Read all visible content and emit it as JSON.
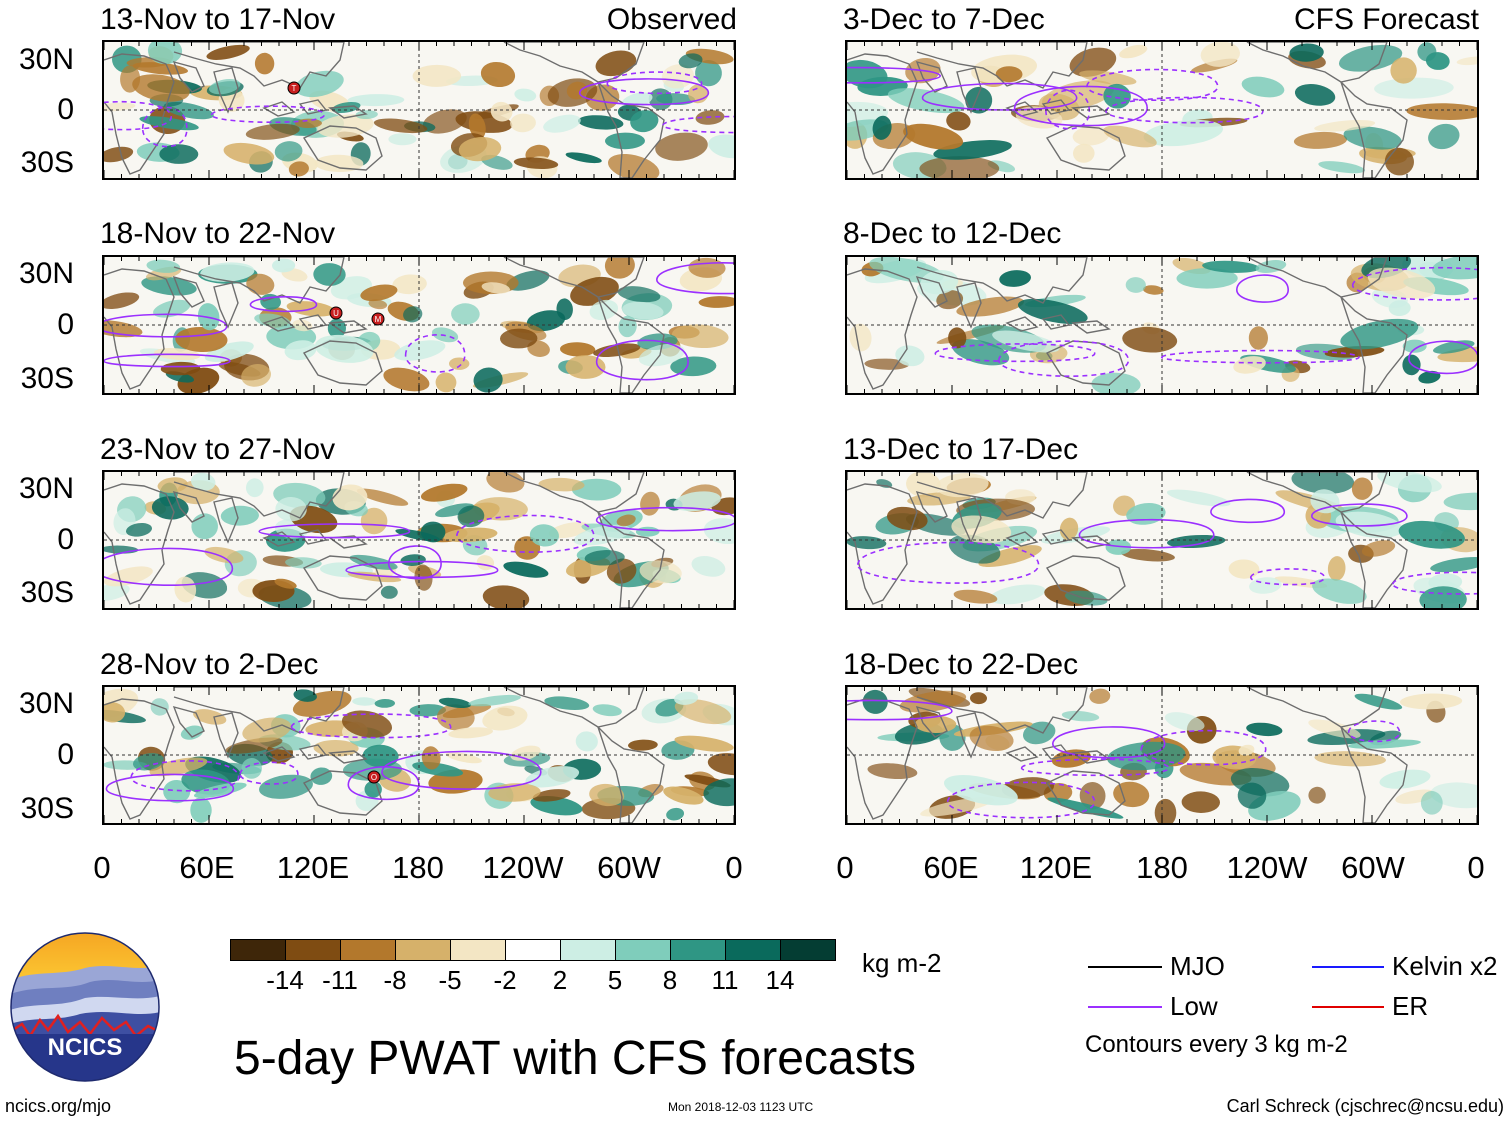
{
  "main_title": "5-day PWAT with CFS forecasts",
  "observed_label": "Observed",
  "forecast_label": "CFS Forecast",
  "panels": {
    "observed": [
      {
        "title": "13-Nov to 17-Nov",
        "storms": [
          "T"
        ]
      },
      {
        "title": "18-Nov to 22-Nov",
        "storms": [
          "U",
          "M"
        ]
      },
      {
        "title": "23-Nov to 27-Nov",
        "storms": []
      },
      {
        "title": "28-Nov to 2-Dec",
        "storms": [
          "O"
        ]
      }
    ],
    "forecast": [
      {
        "title": "3-Dec to 7-Dec"
      },
      {
        "title": "8-Dec to 12-Dec"
      },
      {
        "title": "13-Dec to 17-Dec"
      },
      {
        "title": "18-Dec to 22-Dec"
      }
    ]
  },
  "lat_labels": [
    "30N",
    "0",
    "30S"
  ],
  "lon_labels": [
    "0",
    "60E",
    "120E",
    "180",
    "120W",
    "60W",
    "0"
  ],
  "colorbar": {
    "units": "kg m-2",
    "labels": [
      "-14",
      "-11",
      "-8",
      "-5",
      "-2",
      "2",
      "5",
      "8",
      "11",
      "14"
    ],
    "colors": [
      "#3e2609",
      "#7f4c12",
      "#b3782c",
      "#d6b16a",
      "#f3e6c4",
      "#ffffff",
      "#cdeee4",
      "#7fcdbb",
      "#2f9684",
      "#0a6a5c",
      "#043d33"
    ]
  },
  "legend": {
    "items": [
      {
        "label": "MJO",
        "color": "#000000"
      },
      {
        "label": "Low",
        "color": "#9b30ff"
      },
      {
        "label": "Kelvin x2",
        "color": "#1a1aff"
      },
      {
        "label": "ER",
        "color": "#e00000"
      }
    ],
    "note": "Contours every 3 kg m-2"
  },
  "logo_text": "NCICS",
  "footer": {
    "left": "ncics.org/mjo",
    "center": "Mon 2018-12-03 1123 UTC",
    "right": "Carl Schreck (cjschrec@ncsu.edu)"
  },
  "colors": {
    "dry": "#b3782c",
    "wet": "#0a6a5c",
    "contour": "#9b30ff",
    "coast": "#6e6e6e"
  }
}
